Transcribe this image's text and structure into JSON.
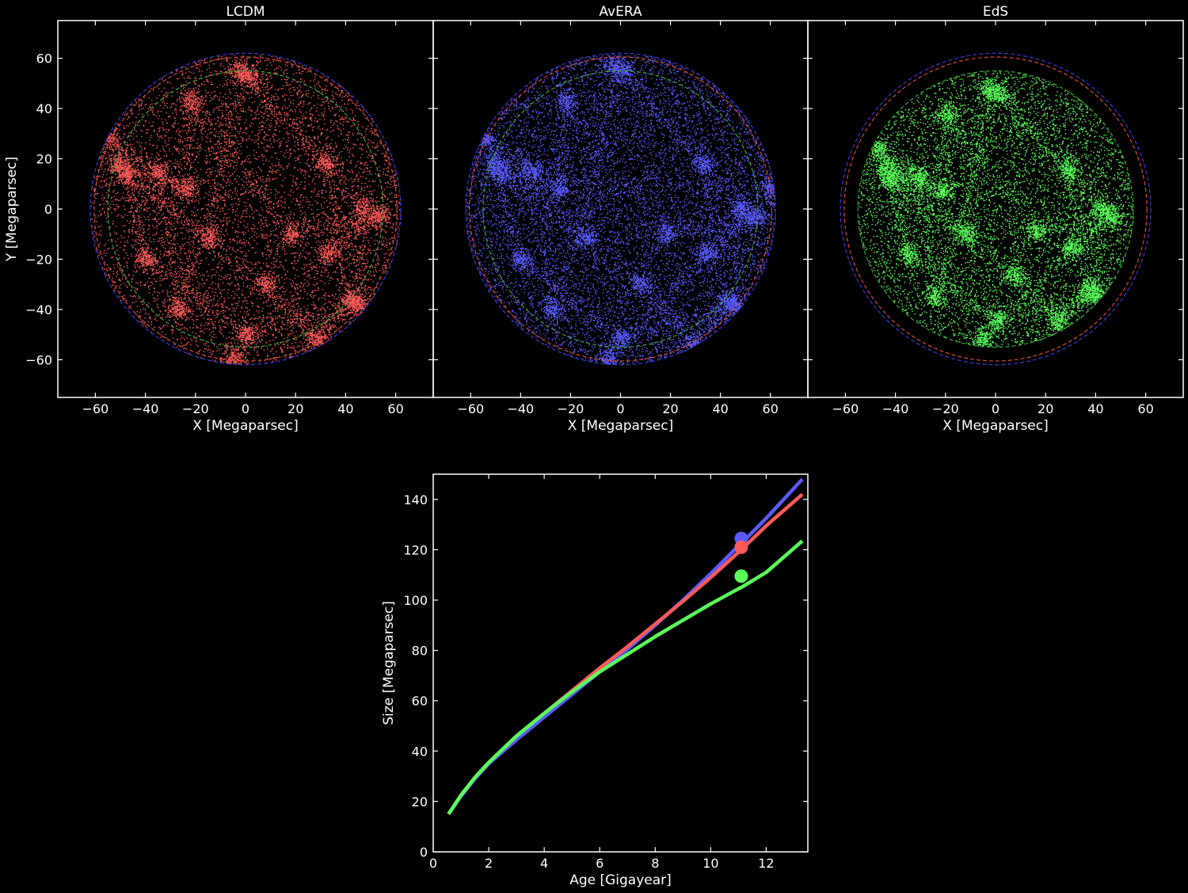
{
  "colors": {
    "background": "#000000",
    "axes": "#ffffff",
    "lcdm": "#ff5a5a",
    "avera": "#5a5aff",
    "eds": "#5aff5a",
    "ring_blue": "#3a3ad8",
    "ring_red": "#d84a3a",
    "ring_green": "#3aa83a"
  },
  "chart_data": [
    {
      "type": "scatter",
      "title": "LCDM",
      "xlabel": "X [Megaparsec]",
      "ylabel": "Y [Megaparsec]",
      "xlim": [
        -75,
        75
      ],
      "ylim": [
        -75,
        75
      ],
      "xticks": [
        -60,
        -40,
        -20,
        0,
        20,
        40,
        60
      ],
      "yticks": [
        -60,
        -40,
        -20,
        0,
        20,
        40,
        60
      ],
      "xtick_labels": [
        "−60",
        "−40",
        "−20",
        "0",
        "20",
        "40",
        "60"
      ],
      "ytick_labels": [
        "−60",
        "−40",
        "−20",
        "0",
        "20",
        "40",
        "60"
      ],
      "point_color": "#ff5a5a",
      "point_radius_limit": 62,
      "reference_circles": [
        {
          "radius": 62,
          "color": "#3a3ad8"
        },
        {
          "radius": 60.5,
          "color": "#d84a3a"
        },
        {
          "radius": 55,
          "color": "#3aa83a"
        }
      ],
      "clusters": [
        [
          -55,
          28
        ],
        [
          -51,
          18
        ],
        [
          -48,
          14
        ],
        [
          -35,
          15
        ],
        [
          -24,
          8
        ],
        [
          -14,
          -12
        ],
        [
          -27,
          -40
        ],
        [
          -22,
          43
        ],
        [
          -3,
          55
        ],
        [
          1,
          53
        ],
        [
          18,
          -10
        ],
        [
          32,
          18
        ],
        [
          47,
          0
        ],
        [
          53,
          -3
        ],
        [
          42,
          -36
        ],
        [
          45,
          -38
        ],
        [
          33,
          -18
        ],
        [
          28,
          -52
        ],
        [
          0,
          -50
        ],
        [
          -5,
          -60
        ],
        [
          8,
          -30
        ],
        [
          -40,
          -20
        ]
      ]
    },
    {
      "type": "scatter",
      "title": "AvERA",
      "xlabel": "X [Megaparsec]",
      "ylabel": "",
      "xlim": [
        -75,
        75
      ],
      "ylim": [
        -75,
        75
      ],
      "xticks": [
        -60,
        -40,
        -20,
        0,
        20,
        40,
        60
      ],
      "yticks": [
        -60,
        -40,
        -20,
        0,
        20,
        40,
        60
      ],
      "xtick_labels": [
        "−60",
        "−40",
        "−20",
        "0",
        "20",
        "40",
        "60"
      ],
      "point_color": "#5a5aff",
      "point_radius_limit": 62,
      "reference_circles": [
        {
          "radius": 62,
          "color": "#3a3ad8"
        },
        {
          "radius": 60.5,
          "color": "#d84a3a"
        },
        {
          "radius": 55,
          "color": "#3aa83a"
        }
      ],
      "clusters": [
        [
          -55,
          28
        ],
        [
          -51,
          18
        ],
        [
          -48,
          14
        ],
        [
          -35,
          15
        ],
        [
          -24,
          8
        ],
        [
          -14,
          -12
        ],
        [
          -27,
          -40
        ],
        [
          -22,
          43
        ],
        [
          -3,
          57
        ],
        [
          1,
          55
        ],
        [
          18,
          -10
        ],
        [
          33,
          18
        ],
        [
          48,
          0
        ],
        [
          54,
          -3
        ],
        [
          43,
          -37
        ],
        [
          46,
          -39
        ],
        [
          34,
          -18
        ],
        [
          29,
          -54
        ],
        [
          0,
          -52
        ],
        [
          -5,
          -60
        ],
        [
          8,
          -30
        ],
        [
          -40,
          -20
        ],
        [
          60,
          8
        ]
      ]
    },
    {
      "type": "scatter",
      "title": "EdS",
      "xlabel": "X [Megaparsec]",
      "ylabel": "",
      "xlim": [
        -75,
        75
      ],
      "ylim": [
        -75,
        75
      ],
      "xticks": [
        -60,
        -40,
        -20,
        0,
        20,
        40,
        60
      ],
      "yticks": [
        -60,
        -40,
        -20,
        0,
        20,
        40,
        60
      ],
      "xtick_labels": [
        "−60",
        "−40",
        "−20",
        "0",
        "20",
        "40",
        "60"
      ],
      "point_color": "#5aff5a",
      "point_radius_limit": 55,
      "reference_circles": [
        {
          "radius": 62,
          "color": "#3a3ad8"
        },
        {
          "radius": 60.5,
          "color": "#d84a3a"
        },
        {
          "radius": 55,
          "color": "#3aa83a"
        }
      ],
      "clusters": [
        [
          -47,
          24
        ],
        [
          -44,
          16
        ],
        [
          -42,
          12
        ],
        [
          -31,
          13
        ],
        [
          -21,
          7
        ],
        [
          -12,
          -10
        ],
        [
          -24,
          -35
        ],
        [
          -20,
          38
        ],
        [
          -3,
          48
        ],
        [
          1,
          46
        ],
        [
          16,
          -9
        ],
        [
          29,
          16
        ],
        [
          42,
          0
        ],
        [
          47,
          -3
        ],
        [
          37,
          -32
        ],
        [
          40,
          -34
        ],
        [
          30,
          -16
        ],
        [
          25,
          -45
        ],
        [
          0,
          -44
        ],
        [
          -5,
          -52
        ],
        [
          7,
          -26
        ],
        [
          -35,
          -18
        ]
      ]
    },
    {
      "type": "line",
      "title": "",
      "xlabel": "Age [Gigayear]",
      "ylabel": "Size [Megaparsec]",
      "xlim": [
        0,
        13.5
      ],
      "ylim": [
        0,
        150
      ],
      "xticks": [
        0,
        2,
        4,
        6,
        8,
        10,
        12
      ],
      "yticks": [
        0,
        20,
        40,
        60,
        80,
        100,
        120,
        140
      ],
      "series": [
        {
          "color": "#5a5aff",
          "x": [
            0.55,
            1,
            1.5,
            2,
            3,
            4,
            5,
            6,
            7,
            8,
            9,
            10,
            11,
            11.1,
            12,
            13.3
          ],
          "y": [
            15,
            22,
            29,
            35,
            44.5,
            53.5,
            62.5,
            71.5,
            80.5,
            90,
            100,
            110.5,
            121.5,
            122.5,
            132.5,
            148
          ]
        },
        {
          "color": "#ff5a5a",
          "x": [
            0.55,
            1,
            1.5,
            2,
            3,
            4,
            5,
            6,
            7,
            8,
            9,
            10,
            11,
            11.1,
            12,
            13.3
          ],
          "y": [
            15,
            22.5,
            29.5,
            35.5,
            46,
            55,
            64,
            73,
            81.5,
            90.5,
            99.5,
            109,
            119,
            120,
            129.5,
            142
          ]
        },
        {
          "color": "#5aff5a",
          "x": [
            0.55,
            1,
            1.5,
            2,
            3,
            4,
            5,
            6,
            7,
            8,
            9,
            10,
            11,
            11.1,
            12,
            13.3
          ],
          "y": [
            15,
            22.5,
            29.5,
            35.5,
            46,
            55,
            63.5,
            71.5,
            78.5,
            85.5,
            92,
            98.5,
            104.5,
            105,
            111,
            123.5
          ]
        }
      ],
      "markers": [
        {
          "x": 11.1,
          "y": 124.5,
          "color": "#5a5aff"
        },
        {
          "x": 11.1,
          "y": 121,
          "color": "#ff5a5a"
        },
        {
          "x": 11.1,
          "y": 109.5,
          "color": "#5aff5a"
        }
      ]
    }
  ]
}
